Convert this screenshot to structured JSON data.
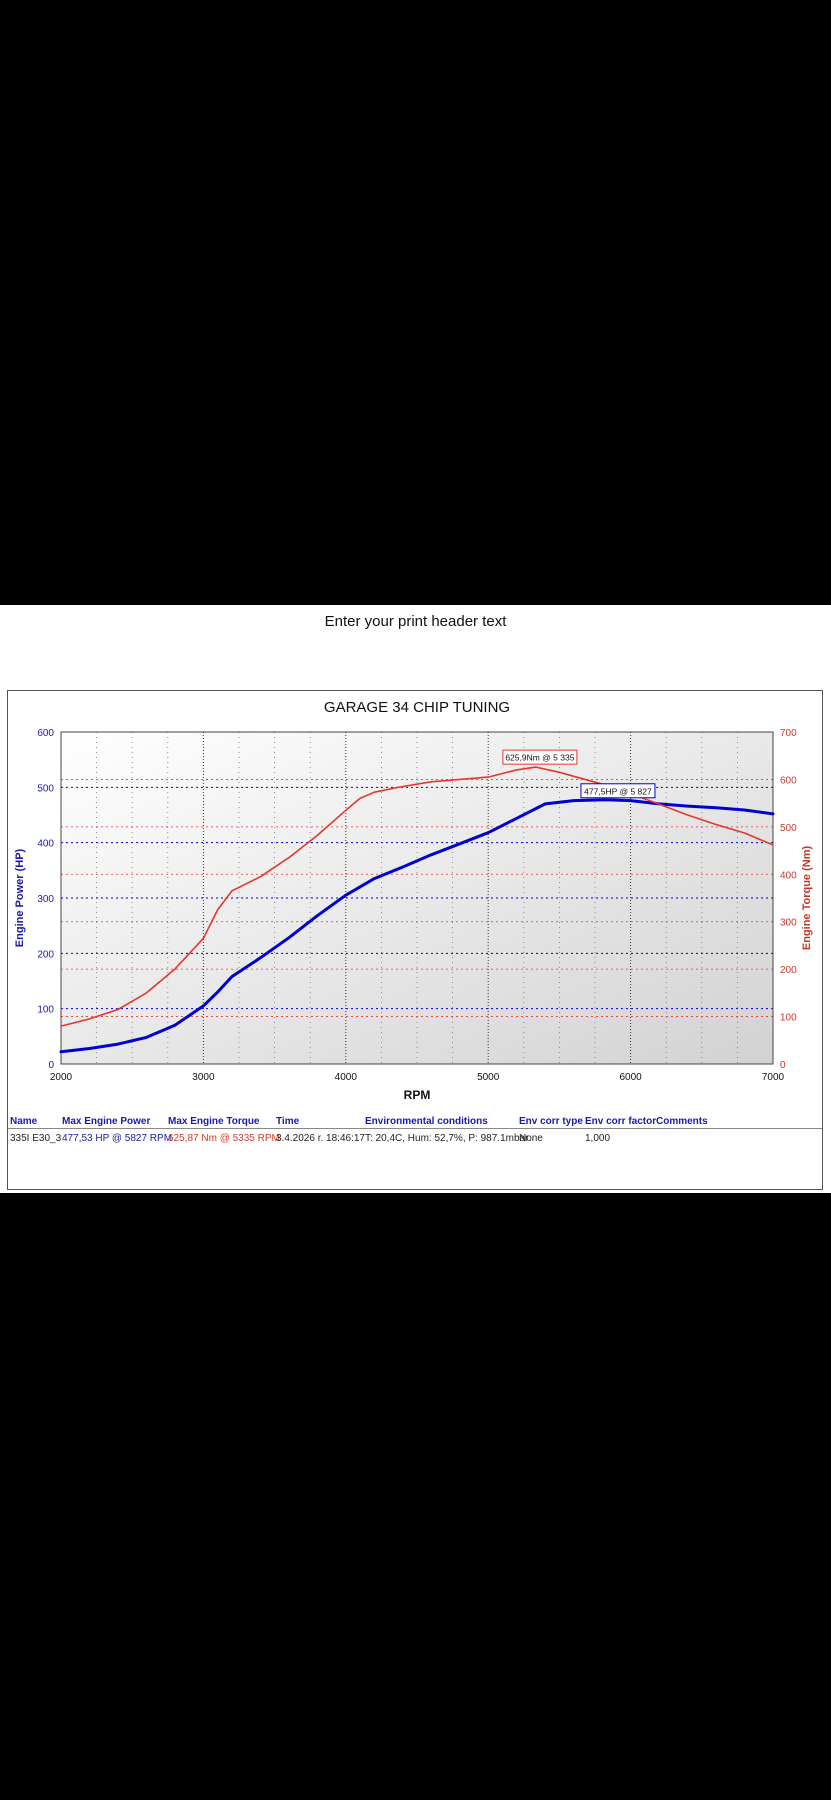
{
  "print_header": "Enter your print header text",
  "colors": {
    "power": "#0000d0",
    "torque": "#e8352a",
    "axis_left": "#1a1aa8",
    "axis_right": "#c0392b"
  },
  "chart_data": {
    "type": "line",
    "title": "GARAGE 34 CHIP TUNING",
    "xlabel": "RPM",
    "ylabel": "Engine Power (HP)",
    "y2label": "Engine Torque (Nm)",
    "xlim": [
      2000,
      7000
    ],
    "ylim": [
      0,
      600
    ],
    "y2lim": [
      0,
      700
    ],
    "xticks": [
      2000,
      3000,
      4000,
      5000,
      6000,
      7000
    ],
    "yticks": [
      0,
      100,
      200,
      300,
      400,
      500,
      600
    ],
    "y2ticks": [
      0,
      100,
      200,
      300,
      400,
      500,
      600,
      700
    ],
    "grid": true,
    "series": [
      {
        "name": "Engine Power",
        "axis": "left",
        "x": [
          2000,
          2200,
          2400,
          2600,
          2800,
          3000,
          3100,
          3200,
          3400,
          3600,
          3800,
          4000,
          4200,
          4400,
          4600,
          4800,
          5000,
          5200,
          5400,
          5600,
          5827,
          6000,
          6200,
          6400,
          6600,
          6800,
          7000
        ],
        "values": [
          22,
          28,
          36,
          48,
          70,
          105,
          130,
          158,
          192,
          228,
          268,
          305,
          335,
          356,
          378,
          398,
          418,
          444,
          470,
          476,
          477.5,
          476,
          470,
          466,
          463,
          459,
          452
        ]
      },
      {
        "name": "Engine Torque",
        "axis": "right",
        "x": [
          2000,
          2200,
          2400,
          2600,
          2800,
          3000,
          3100,
          3200,
          3300,
          3400,
          3600,
          3800,
          4000,
          4100,
          4200,
          4400,
          4600,
          4800,
          5000,
          5200,
          5335,
          5500,
          5800,
          6000,
          6200,
          6400,
          6600,
          6800,
          7000
        ],
        "values": [
          80,
          95,
          115,
          150,
          200,
          265,
          325,
          365,
          380,
          395,
          435,
          482,
          535,
          560,
          573,
          585,
          595,
          600,
          605,
          620,
          625.9,
          615,
          590,
          570,
          548,
          525,
          505,
          487,
          462
        ]
      }
    ],
    "annotations": [
      {
        "text": "625,9Nm @ 5 335",
        "x": 5335,
        "y": 625.9,
        "axis": "right"
      },
      {
        "text": "477,5HP @ 5 827",
        "x": 5827,
        "y": 477.5,
        "axis": "left"
      }
    ]
  },
  "table": {
    "headers": [
      "Name",
      "Max Engine Power",
      "Max Engine Torque",
      "Time",
      "Environmental conditions",
      "Env corr type",
      "Env corr factor",
      "Comments"
    ],
    "row": [
      "335I E30_3",
      "477,53 HP @ 5827 RPM",
      "625,87 Nm @ 5335 RPM",
      "3.4.2026 r. 18:46:17",
      "T: 20,4C, Hum: 52,7%, P: 987.1mbar",
      "None",
      "1,000",
      ""
    ]
  }
}
